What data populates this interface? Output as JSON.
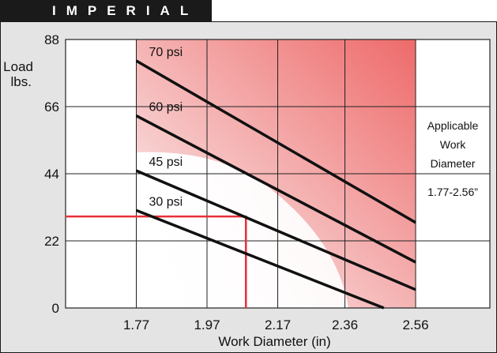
{
  "header": {
    "title": "IMPERIAL"
  },
  "chart_data": {
    "type": "line",
    "xlabel": "Work Diameter  (in)",
    "ylabel": [
      "Load",
      "lbs."
    ],
    "x_ticks": [
      "1.77",
      "1.97",
      "2.17",
      "2.36",
      "2.56"
    ],
    "y_ticks": [
      "0",
      "22",
      "44",
      "66",
      "88"
    ],
    "xlim": [
      1.57,
      2.77
    ],
    "ylim": [
      0,
      88
    ],
    "grid": true,
    "applicable_range": [
      1.77,
      2.56
    ],
    "series": [
      {
        "name": "70 psi",
        "x": [
          1.77,
          2.56
        ],
        "y": [
          81,
          28
        ]
      },
      {
        "name": "60 psi",
        "x": [
          1.77,
          2.56
        ],
        "y": [
          63,
          15
        ]
      },
      {
        "name": "45 psi",
        "x": [
          1.77,
          2.56
        ],
        "y": [
          45,
          6
        ]
      },
      {
        "name": "30 psi",
        "x": [
          1.77,
          2.47
        ],
        "y": [
          32,
          0
        ]
      }
    ],
    "marker_point": {
      "x": 2.08,
      "y": 30,
      "color": "#e8303a"
    },
    "side_note": {
      "title": [
        "Applicable",
        "Work",
        "Diameter"
      ],
      "range": "1.77-2.56”"
    }
  }
}
